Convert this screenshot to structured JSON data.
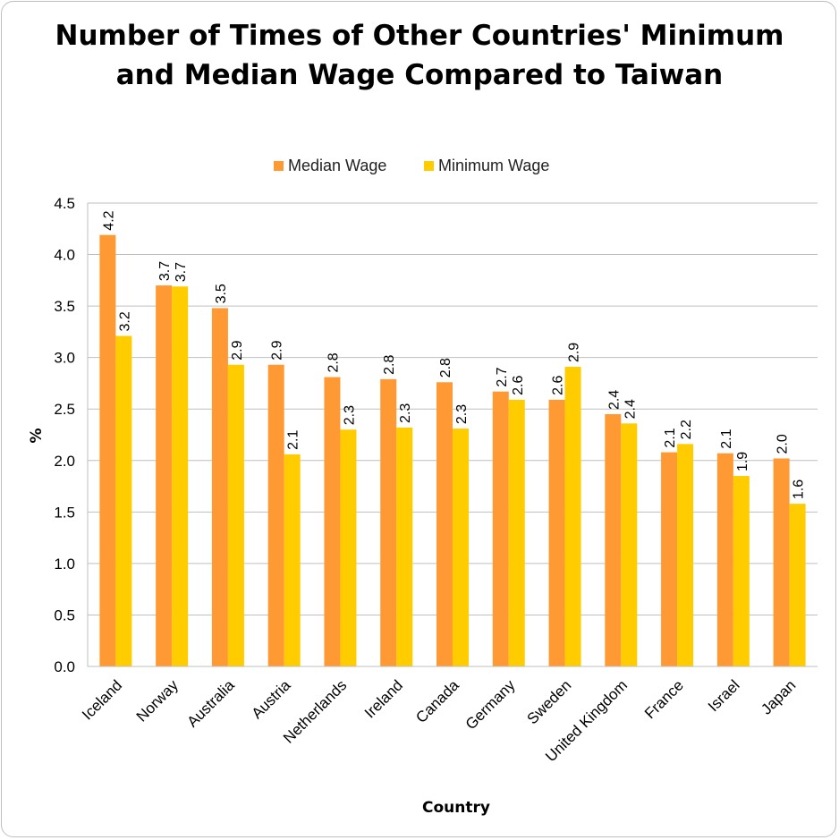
{
  "chart_data": {
    "type": "bar",
    "title": "Number of Times of Other Countries' Minimum and Median Wage Compared to Taiwan",
    "xlabel": "Country",
    "ylabel": "%",
    "categories": [
      "Iceland",
      "Norway",
      "Australia",
      "Austria",
      "Netherlands",
      "Ireland",
      "Canada",
      "Germany",
      "Sweden",
      "United Kingdom",
      "France",
      "Israel",
      "Japan"
    ],
    "series": [
      {
        "name": "Median Wage",
        "color": "#FF9933",
        "values": [
          4.19,
          3.7,
          3.48,
          2.93,
          2.81,
          2.79,
          2.76,
          2.67,
          2.59,
          2.45,
          2.08,
          2.07,
          2.02
        ],
        "labels": [
          "4.2",
          "3.7",
          "3.5",
          "2.9",
          "2.8",
          "2.8",
          "2.8",
          "2.7",
          "2.6",
          "2.4",
          "2.1",
          "2.1",
          "2.0"
        ]
      },
      {
        "name": "Minimum Wage",
        "color": "#FFCC00",
        "values": [
          3.21,
          3.69,
          2.93,
          2.06,
          2.3,
          2.32,
          2.31,
          2.59,
          2.91,
          2.36,
          2.16,
          1.85,
          1.58
        ],
        "labels": [
          "3.2",
          "3.7",
          "2.9",
          "2.1",
          "2.3",
          "2.3",
          "2.3",
          "2.6",
          "2.9",
          "2.4",
          "2.2",
          "1.9",
          "1.6"
        ]
      }
    ],
    "ylim": [
      0,
      4.5
    ],
    "yticks": [
      "0.0",
      "0.5",
      "1.0",
      "1.5",
      "2.0",
      "2.5",
      "3.0",
      "3.5",
      "4.0",
      "4.5"
    ],
    "grid": true,
    "legend": "top"
  }
}
